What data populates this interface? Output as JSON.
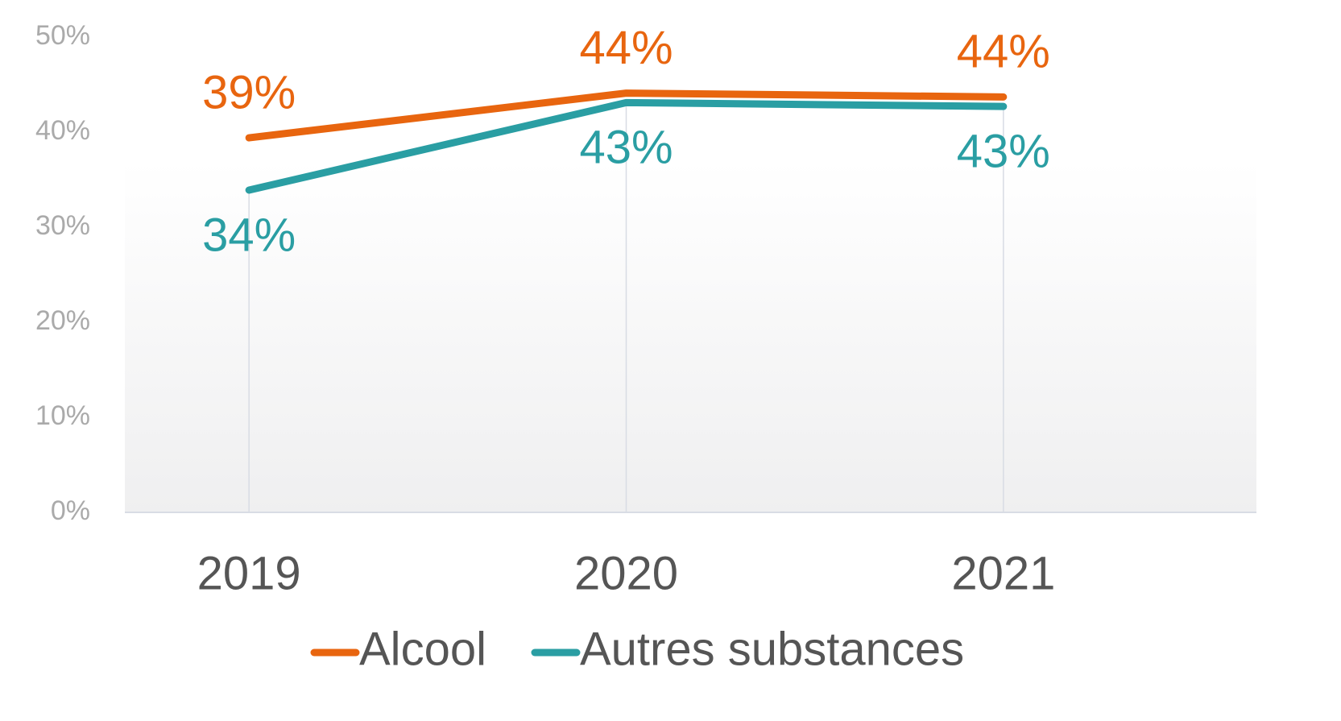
{
  "chart_data": {
    "type": "line",
    "categories": [
      "2019",
      "2020",
      "2021"
    ],
    "series": [
      {
        "name": "Alcool",
        "color": "#e8650f",
        "values": [
          39.4,
          44.1,
          43.7
        ],
        "value_labels": [
          "39%",
          "44%",
          "44%"
        ]
      },
      {
        "name": "Autres substances",
        "color": "#2a9ea3",
        "values": [
          33.9,
          43.1,
          42.7
        ],
        "value_labels": [
          "34%",
          "43%",
          "43%"
        ]
      }
    ],
    "ylim": [
      0,
      50
    ],
    "yticks": [
      {
        "value": 0,
        "label": "0%"
      },
      {
        "value": 10,
        "label": "10%"
      },
      {
        "value": 20,
        "label": "20%"
      },
      {
        "value": 30,
        "label": "30%"
      },
      {
        "value": 40,
        "label": "40%"
      },
      {
        "value": 50,
        "label": "50%"
      }
    ],
    "legend": "bottom"
  }
}
